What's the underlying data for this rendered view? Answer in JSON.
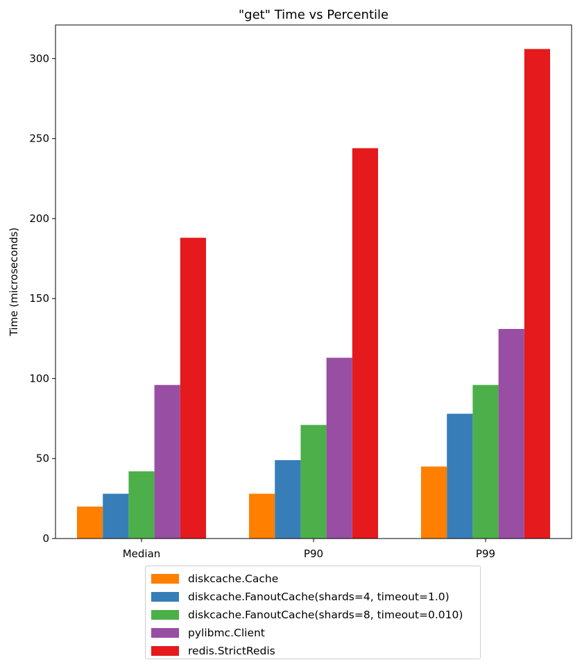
{
  "chart_data": {
    "type": "bar",
    "title": "\"get\" Time vs Percentile",
    "xlabel": "",
    "ylabel": "Time (microseconds)",
    "categories": [
      "Median",
      "P90",
      "P99"
    ],
    "ylim": [
      0,
      321
    ],
    "yticks": [
      0,
      50,
      100,
      150,
      200,
      250,
      300
    ],
    "grid": false,
    "legend_position": "bottom-center",
    "series": [
      {
        "name": "diskcache.Cache",
        "color": "#ff7f00",
        "values": [
          20,
          28,
          45
        ]
      },
      {
        "name": "diskcache.FanoutCache(shards=4, timeout=1.0)",
        "color": "#377eb8",
        "values": [
          28,
          49,
          78
        ]
      },
      {
        "name": "diskcache.FanoutCache(shards=8, timeout=0.010)",
        "color": "#4daf4a",
        "values": [
          42,
          71,
          96
        ]
      },
      {
        "name": "pylibmc.Client",
        "color": "#984ea3",
        "values": [
          96,
          113,
          131
        ]
      },
      {
        "name": "redis.StrictRedis",
        "color": "#e41a1c",
        "values": [
          188,
          244,
          306
        ]
      }
    ]
  }
}
